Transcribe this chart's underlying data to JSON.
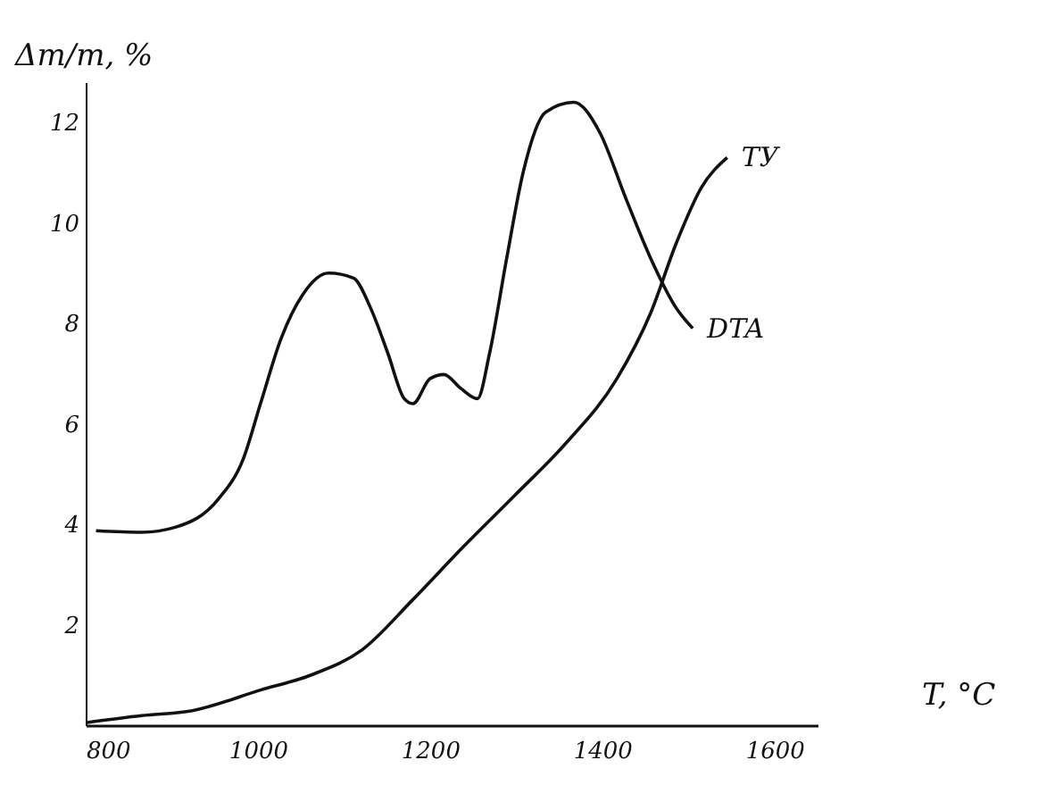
{
  "chart_data": {
    "type": "line",
    "xlabel": "T, °C",
    "ylabel": "Δm/m, %",
    "xlim": [
      800,
      1650
    ],
    "ylim": [
      0,
      12.8
    ],
    "xticks": [
      800,
      1000,
      1200,
      1400,
      1600
    ],
    "yticks": [
      2,
      4,
      6,
      8,
      10,
      12
    ],
    "grid": false,
    "legend": false,
    "marker": "none",
    "line_style": "solid",
    "series": [
      {
        "name": "DTA",
        "color": "#111111",
        "x": [
          812,
          865,
          904,
          954,
          983,
          1003,
          1027,
          1052,
          1082,
          1111,
          1131,
          1151,
          1170,
          1180,
          1200,
          1216,
          1236,
          1255,
          1269,
          1289,
          1308,
          1334,
          1367,
          1397,
          1427,
          1456,
          1486,
          1505
        ],
        "values": [
          3.87,
          3.84,
          3.94,
          4.5,
          5.3,
          6.4,
          7.7,
          8.57,
          9.0,
          8.9,
          8.3,
          7.4,
          6.5,
          6.4,
          6.9,
          6.98,
          6.7,
          6.5,
          7.4,
          9.3,
          11.0,
          12.2,
          12.4,
          11.8,
          10.5,
          9.3,
          8.3,
          7.9
        ]
      },
      {
        "name": "ТУ",
        "color": "#111111",
        "x": [
          800,
          865,
          924,
          1003,
          1062,
          1121,
          1180,
          1239,
          1298,
          1357,
          1417,
          1456,
          1486,
          1515,
          1545
        ],
        "values": [
          0.05,
          0.19,
          0.29,
          0.7,
          1.0,
          1.5,
          2.5,
          3.56,
          4.57,
          5.6,
          6.9,
          8.2,
          9.6,
          10.7,
          11.3
        ]
      }
    ]
  }
}
